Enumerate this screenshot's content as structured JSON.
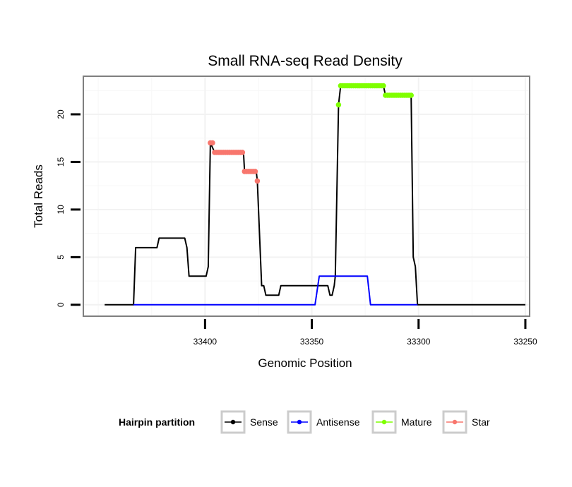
{
  "chart_data": {
    "type": "line",
    "title": "Small RNA-seq Read Density",
    "xlabel": "Genomic Position",
    "ylabel": "Total Reads",
    "xlim": [
      33457,
      33248
    ],
    "x_reversed": true,
    "ylim": [
      -1.2,
      24
    ],
    "x_ticks": [
      33400,
      33350,
      33300,
      33250
    ],
    "x_tick_labels": [
      "33400",
      "33350",
      "33300",
      "33250"
    ],
    "y_ticks": [
      0,
      5,
      10,
      15,
      20
    ],
    "y_tick_labels": [
      "0",
      "5",
      "10",
      "15",
      "20"
    ],
    "grid": true,
    "legend": {
      "title": "Hairpin partition",
      "position": "bottom",
      "entries": [
        {
          "label": "Sense",
          "color": "#000000"
        },
        {
          "label": "Antisense",
          "color": "#0000ff"
        },
        {
          "label": "Mature",
          "color": "#7fff00"
        },
        {
          "label": "Star",
          "color": "#f8766d"
        }
      ]
    },
    "series": [
      {
        "name": "Sense",
        "color": "#000000",
        "style": "line",
        "points": [
          [
            33447,
            0
          ],
          [
            33433.5,
            0
          ],
          [
            33432.5,
            6
          ],
          [
            33422.5,
            6
          ],
          [
            33421.5,
            7
          ],
          [
            33409.5,
            7
          ],
          [
            33408.5,
            6
          ],
          [
            33407.5,
            3
          ],
          [
            33399.5,
            3
          ],
          [
            33398.5,
            4
          ],
          [
            33397.5,
            17
          ],
          [
            33395.5,
            16
          ],
          [
            33382,
            16
          ],
          [
            33381.5,
            14
          ],
          [
            33376,
            14
          ],
          [
            33375.5,
            13
          ],
          [
            33373.5,
            2
          ],
          [
            33372.5,
            2
          ],
          [
            33371.5,
            1
          ],
          [
            33365.5,
            1
          ],
          [
            33364.5,
            2
          ],
          [
            33342.5,
            2
          ],
          [
            33341.5,
            1
          ],
          [
            33340.5,
            1
          ],
          [
            33339.5,
            2
          ],
          [
            33339,
            3
          ],
          [
            33337.5,
            21
          ],
          [
            33336.5,
            23
          ],
          [
            33316.5,
            23
          ],
          [
            33315.5,
            22
          ],
          [
            33303.5,
            22
          ],
          [
            33302.5,
            5
          ],
          [
            33301.5,
            4
          ],
          [
            33300.5,
            0
          ],
          [
            33250,
            0
          ]
        ]
      },
      {
        "name": "Antisense",
        "color": "#0000ff",
        "style": "line",
        "points": [
          [
            33433.5,
            0
          ],
          [
            33348.5,
            0
          ],
          [
            33346.5,
            3
          ],
          [
            33324,
            3
          ],
          [
            33322.5,
            0
          ],
          [
            33300.5,
            0
          ]
        ]
      },
      {
        "name": "Mature",
        "color": "#7fff00",
        "style": "points",
        "points": [
          [
            33337.5,
            21
          ],
          [
            33336.5,
            23
          ],
          [
            33335.5,
            23
          ],
          [
            33334.5,
            23
          ],
          [
            33333.5,
            23
          ],
          [
            33332.5,
            23
          ],
          [
            33331.5,
            23
          ],
          [
            33330.5,
            23
          ],
          [
            33329.5,
            23
          ],
          [
            33328.5,
            23
          ],
          [
            33327.5,
            23
          ],
          [
            33326.5,
            23
          ],
          [
            33325.5,
            23
          ],
          [
            33324.5,
            23
          ],
          [
            33323.5,
            23
          ],
          [
            33322.5,
            23
          ],
          [
            33321.5,
            23
          ],
          [
            33320.5,
            23
          ],
          [
            33319.5,
            23
          ],
          [
            33318.5,
            23
          ],
          [
            33317.5,
            23
          ],
          [
            33316.5,
            23
          ],
          [
            33315.5,
            22
          ],
          [
            33314.5,
            22
          ],
          [
            33313.5,
            22
          ],
          [
            33312.5,
            22
          ],
          [
            33311.5,
            22
          ],
          [
            33310.5,
            22
          ],
          [
            33309.5,
            22
          ],
          [
            33308.5,
            22
          ],
          [
            33307.5,
            22
          ],
          [
            33306.5,
            22
          ],
          [
            33305.5,
            22
          ],
          [
            33304.5,
            22
          ],
          [
            33303.5,
            22
          ]
        ]
      },
      {
        "name": "Star",
        "color": "#f8766d",
        "style": "points",
        "points": [
          [
            33397.5,
            17
          ],
          [
            33396.5,
            17
          ],
          [
            33395.5,
            16
          ],
          [
            33394.5,
            16
          ],
          [
            33393.5,
            16
          ],
          [
            33392.5,
            16
          ],
          [
            33391.5,
            16
          ],
          [
            33390.5,
            16
          ],
          [
            33389.5,
            16
          ],
          [
            33388.5,
            16
          ],
          [
            33387.5,
            16
          ],
          [
            33386.5,
            16
          ],
          [
            33385.5,
            16
          ],
          [
            33384.5,
            16
          ],
          [
            33383.5,
            16
          ],
          [
            33382.5,
            16
          ],
          [
            33381.5,
            14
          ],
          [
            33380.5,
            14
          ],
          [
            33379.5,
            14
          ],
          [
            33378.5,
            14
          ],
          [
            33377.5,
            14
          ],
          [
            33376.5,
            14
          ],
          [
            33375.5,
            13
          ]
        ]
      }
    ]
  }
}
